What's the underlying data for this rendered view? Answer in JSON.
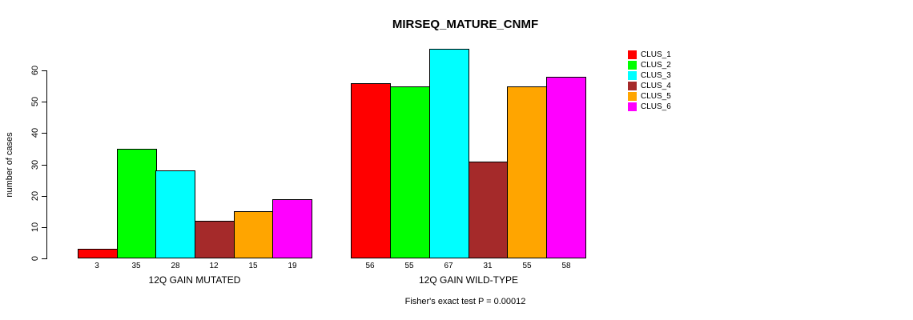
{
  "chart_data": {
    "type": "bar",
    "title": "MIRSEQ_MATURE_CNMF",
    "ylabel": "number of cases",
    "xlabel": "",
    "ylim": [
      0,
      67
    ],
    "yticks": [
      0,
      10,
      20,
      30,
      40,
      50,
      60
    ],
    "grid": false,
    "legend_position": "top-right",
    "categories": [
      "12Q GAIN MUTATED",
      "12Q GAIN WILD-TYPE"
    ],
    "series": [
      {
        "name": "CLUS_1",
        "color": "#FF0000",
        "values": [
          3,
          56
        ]
      },
      {
        "name": "CLUS_2",
        "color": "#00FF00",
        "values": [
          35,
          55
        ]
      },
      {
        "name": "CLUS_3",
        "color": "#00FFFF",
        "values": [
          28,
          67
        ]
      },
      {
        "name": "CLUS_4",
        "color": "#A52A2A",
        "values": [
          12,
          31
        ]
      },
      {
        "name": "CLUS_5",
        "color": "#FFA500",
        "values": [
          15,
          55
        ]
      },
      {
        "name": "CLUS_6",
        "color": "#FF00FF",
        "values": [
          19,
          58
        ]
      }
    ],
    "bar_value_labels": true,
    "annotation": "Fisher's exact test P = 0.00012"
  }
}
